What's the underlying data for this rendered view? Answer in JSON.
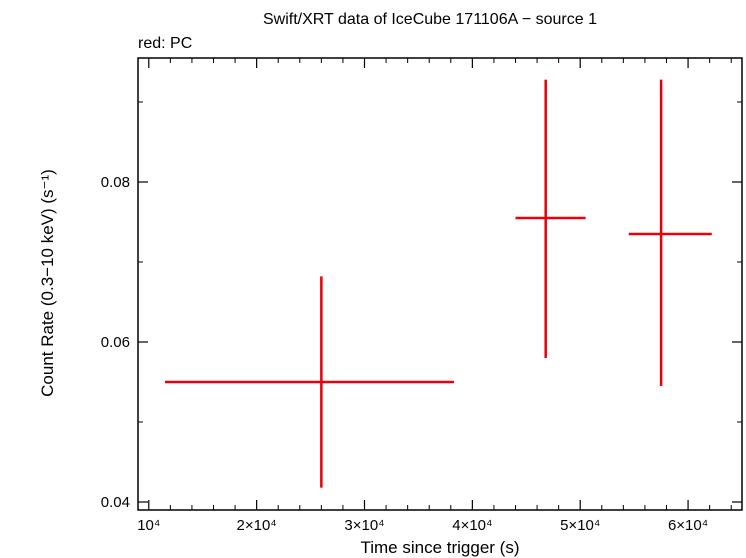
{
  "chart_data": {
    "type": "scatter",
    "title": "Swift/XRT data of IceCube 171106A − source 1",
    "subtitle": "red: PC",
    "xlabel": "Time since trigger (s)",
    "ylabel": "Count Rate (0.3−10 keV) (s⁻¹)",
    "xlim": [
      9000,
      65000
    ],
    "ylim": [
      0.039,
      0.0955
    ],
    "grid": false,
    "x_ticks": [
      {
        "value": 10000,
        "label": "10⁴"
      },
      {
        "value": 20000,
        "label": "2×10⁴"
      },
      {
        "value": 30000,
        "label": "3×10⁴"
      },
      {
        "value": 40000,
        "label": "4×10⁴"
      },
      {
        "value": 50000,
        "label": "5×10⁴"
      },
      {
        "value": 60000,
        "label": "6×10⁴"
      }
    ],
    "y_ticks": [
      {
        "value": 0.04,
        "label": "0.04"
      },
      {
        "value": 0.06,
        "label": "0.06"
      },
      {
        "value": 0.08,
        "label": "0.08"
      }
    ],
    "series": [
      {
        "color": "#e8000b",
        "points": [
          {
            "x": 26000,
            "xmin": 11500,
            "xmax": 38300,
            "y": 0.055,
            "ymin": 0.0418,
            "ymax": 0.0682
          },
          {
            "x": 46800,
            "xmin": 44000,
            "xmax": 50500,
            "y": 0.0755,
            "ymin": 0.058,
            "ymax": 0.0928
          },
          {
            "x": 57500,
            "xmin": 54500,
            "xmax": 62200,
            "y": 0.0735,
            "ymin": 0.0545,
            "ymax": 0.0928
          }
        ]
      }
    ]
  }
}
